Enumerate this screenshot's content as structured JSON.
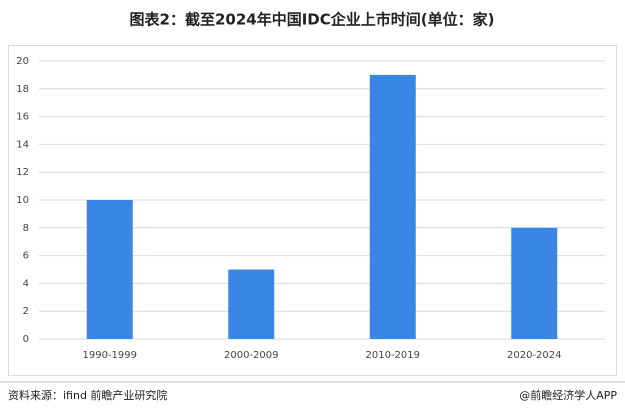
{
  "chart_data": {
    "type": "bar",
    "title": "图表2：截至2024年中国IDC企业上市时间(单位：家)",
    "categories": [
      "1990-1999",
      "2000-2009",
      "2010-2019",
      "2020-2024"
    ],
    "values": [
      10,
      5,
      19,
      8
    ],
    "color": "#3a86e6",
    "ylim": [
      0,
      20
    ],
    "yticks": [
      0,
      2,
      4,
      6,
      8,
      10,
      12,
      14,
      16,
      18,
      20
    ],
    "grid": true
  },
  "footer": {
    "source": "资料来源：ifind 前瞻产业研究院",
    "credit": "@前瞻经济学人APP"
  }
}
